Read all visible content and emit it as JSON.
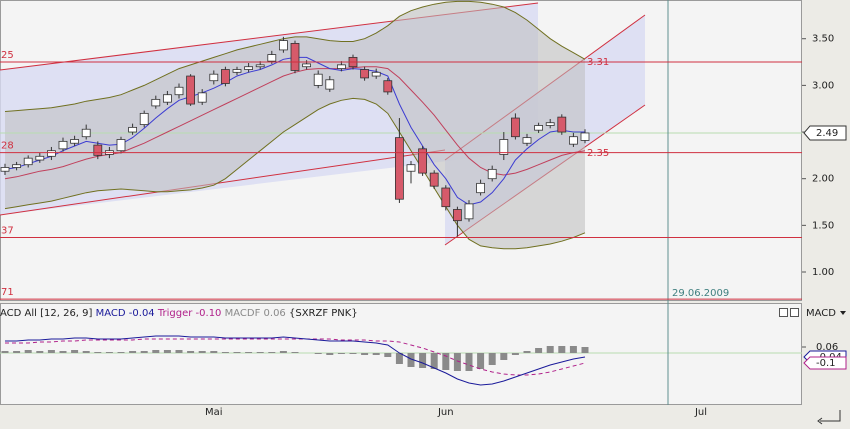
{
  "chart_data": [
    {
      "type": "candlestick",
      "categories": [
        null,
        null,
        null,
        null,
        null,
        null,
        null,
        null,
        null,
        null,
        null,
        null,
        null,
        null,
        null,
        null,
        null,
        null,
        "Mai",
        null,
        null,
        null,
        null,
        null,
        null,
        null,
        null,
        null,
        null,
        null,
        null,
        null,
        null,
        null,
        null,
        null,
        null,
        null,
        "Jun",
        null,
        null,
        null,
        null,
        null,
        null,
        null,
        null,
        null,
        null,
        null,
        null,
        null,
        null,
        null,
        null,
        null,
        null,
        null,
        null,
        null,
        "Jul"
      ],
      "open": [
        2.08,
        2.12,
        2.15,
        2.2,
        2.24,
        2.32,
        2.38,
        2.45,
        2.36,
        2.26,
        2.3,
        2.5,
        2.58,
        2.78,
        2.82,
        2.9,
        3.1,
        2.82,
        3.05,
        3.17,
        3.14,
        3.17,
        3.2,
        3.26,
        3.38,
        3.45,
        3.2,
        3.0,
        2.96,
        3.18,
        3.3,
        3.17,
        3.1,
        3.05,
        2.44,
        2.08,
        2.32,
        2.06,
        1.9,
        1.67,
        1.57,
        1.85,
        2.0,
        2.26,
        2.65,
        2.38,
        2.52,
        2.57,
        2.66,
        2.37,
        2.41,
        null,
        null,
        null,
        null,
        null,
        null,
        null,
        null,
        null,
        null
      ],
      "high": [
        2.16,
        2.18,
        2.25,
        2.28,
        2.34,
        2.44,
        2.46,
        2.58,
        2.4,
        2.34,
        2.45,
        2.59,
        2.73,
        2.89,
        2.94,
        3.02,
        3.12,
        2.96,
        3.16,
        3.2,
        3.2,
        3.24,
        3.26,
        3.37,
        3.52,
        3.48,
        3.27,
        3.16,
        3.1,
        3.26,
        3.33,
        3.2,
        3.18,
        3.08,
        2.65,
        2.19,
        2.35,
        2.09,
        1.93,
        1.7,
        1.77,
        1.99,
        2.14,
        2.5,
        2.7,
        2.48,
        2.6,
        2.64,
        2.69,
        2.49,
        2.53,
        null,
        null,
        null,
        null,
        null,
        null,
        null,
        null,
        null,
        null
      ],
      "low": [
        2.04,
        2.09,
        2.12,
        2.17,
        2.2,
        2.29,
        2.35,
        2.42,
        2.21,
        2.22,
        2.27,
        2.47,
        2.55,
        2.75,
        2.79,
        2.86,
        2.78,
        2.79,
        3.01,
        2.99,
        3.11,
        3.14,
        3.17,
        3.23,
        3.35,
        3.13,
        3.17,
        2.97,
        2.93,
        3.15,
        3.17,
        3.05,
        3.07,
        2.9,
        1.74,
        1.95,
        2.03,
        1.89,
        1.66,
        1.38,
        1.54,
        1.82,
        1.97,
        2.2,
        2.42,
        2.35,
        2.49,
        2.54,
        2.47,
        2.34,
        2.38,
        null,
        null,
        null,
        null,
        null,
        null,
        null,
        null,
        null,
        null
      ],
      "close": [
        2.12,
        2.15,
        2.22,
        2.24,
        2.3,
        2.4,
        2.42,
        2.53,
        2.25,
        2.3,
        2.42,
        2.55,
        2.7,
        2.85,
        2.9,
        2.98,
        2.8,
        2.92,
        3.12,
        3.02,
        3.17,
        3.2,
        3.22,
        3.33,
        3.48,
        3.16,
        3.23,
        3.12,
        3.06,
        3.22,
        3.2,
        3.08,
        3.14,
        2.93,
        1.78,
        2.15,
        2.06,
        1.92,
        1.7,
        1.55,
        1.73,
        1.95,
        2.1,
        2.42,
        2.45,
        2.44,
        2.57,
        2.6,
        2.5,
        2.45,
        2.49,
        null,
        null,
        null,
        null,
        null,
        null,
        null,
        null,
        null,
        null
      ],
      "upper_band": [
        2.72,
        2.73,
        2.74,
        2.75,
        2.76,
        2.78,
        2.8,
        2.83,
        2.85,
        2.87,
        2.9,
        2.95,
        3.0,
        3.06,
        3.12,
        3.18,
        3.22,
        3.26,
        3.3,
        3.34,
        3.38,
        3.41,
        3.44,
        3.47,
        3.5,
        3.52,
        3.52,
        3.5,
        3.48,
        3.47,
        3.47,
        3.5,
        3.56,
        3.64,
        3.74,
        3.8,
        3.84,
        3.87,
        3.89,
        3.9,
        3.9,
        3.89,
        3.87,
        3.84,
        3.78,
        3.7,
        3.6,
        3.5,
        3.42,
        3.35,
        3.28,
        null,
        null,
        null,
        null,
        null,
        null,
        null,
        null,
        null,
        null
      ],
      "lower_band": [
        1.68,
        1.7,
        1.72,
        1.74,
        1.76,
        1.79,
        1.82,
        1.85,
        1.87,
        1.88,
        1.89,
        1.88,
        1.87,
        1.86,
        1.86,
        1.87,
        1.88,
        1.9,
        1.93,
        2.0,
        2.1,
        2.2,
        2.3,
        2.4,
        2.5,
        2.58,
        2.66,
        2.74,
        2.8,
        2.84,
        2.86,
        2.85,
        2.8,
        2.7,
        2.5,
        2.3,
        2.1,
        1.9,
        1.7,
        1.5,
        1.35,
        1.28,
        1.26,
        1.25,
        1.25,
        1.26,
        1.28,
        1.3,
        1.33,
        1.37,
        1.42,
        null,
        null,
        null,
        null,
        null,
        null,
        null,
        null,
        null,
        null
      ],
      "ma_fast": [
        2.1,
        2.12,
        2.16,
        2.2,
        2.24,
        2.3,
        2.35,
        2.4,
        2.38,
        2.36,
        2.37,
        2.44,
        2.54,
        2.65,
        2.75,
        2.84,
        2.88,
        2.92,
        2.97,
        3.03,
        3.1,
        3.14,
        3.17,
        3.22,
        3.28,
        3.3,
        3.3,
        3.24,
        3.18,
        3.16,
        3.18,
        3.17,
        3.15,
        3.1,
        2.8,
        2.55,
        2.35,
        2.15,
        2.0,
        1.8,
        1.72,
        1.75,
        1.85,
        2.0,
        2.2,
        2.32,
        2.42,
        2.5,
        2.52,
        2.5,
        2.5,
        null,
        null,
        null,
        null,
        null,
        null,
        null,
        null,
        null,
        null
      ],
      "ma_slow": [
        2.0,
        2.02,
        2.05,
        2.08,
        2.1,
        2.13,
        2.17,
        2.21,
        2.24,
        2.26,
        2.28,
        2.33,
        2.38,
        2.44,
        2.5,
        2.56,
        2.62,
        2.68,
        2.74,
        2.8,
        2.86,
        2.92,
        2.98,
        3.04,
        3.1,
        3.14,
        3.17,
        3.18,
        3.18,
        3.18,
        3.19,
        3.2,
        3.2,
        3.18,
        3.08,
        2.95,
        2.82,
        2.68,
        2.52,
        2.36,
        2.22,
        2.12,
        2.06,
        2.04,
        2.06,
        2.1,
        2.15,
        2.2,
        2.25,
        2.28,
        2.3,
        null,
        null,
        null,
        null,
        null,
        null,
        null,
        null,
        null,
        null
      ],
      "colors": {
        "up": "#ffffff",
        "down": "#d65a6a",
        "outline": "#333333",
        "band": "#707020",
        "band_fill": "#bdbdbd",
        "ma_fast": "#3c3cd2",
        "ma_slow": "#c0405c",
        "level": "#d03040",
        "last_line": "#b8ddb0"
      },
      "ylim": [
        0.7,
        3.915
      ],
      "yticks": [
        {
          "value": 3.5,
          "label": "3.50"
        },
        {
          "value": 3,
          "label": "3.00"
        },
        {
          "value": 2.5,
          "label": "2.50"
        },
        {
          "value": 2,
          "label": "2.00"
        },
        {
          "value": 1.5,
          "label": "1.50"
        },
        {
          "value": 1,
          "label": "1.00"
        }
      ],
      "levels": [
        {
          "value": 3.25,
          "label": "25"
        },
        {
          "value": 2.28,
          "label": "28"
        },
        {
          "value": 1.37,
          "label": "37"
        },
        {
          "value": 0.71,
          "label": "71"
        }
      ],
      "annotations": [
        "3.31",
        "2.35"
      ],
      "cursor_date": "29.06.2009"
    },
    {
      "type": "macd",
      "title": "ACD All [12, 26, 9]",
      "symbol": "{SXRZF PNK}",
      "indicator_menu": "MACD",
      "series": [
        {
          "name": "MACD",
          "color": "#1a1a9a",
          "values": [
            0.12,
            0.12,
            0.13,
            0.13,
            0.14,
            0.14,
            0.15,
            0.15,
            0.14,
            0.14,
            0.14,
            0.15,
            0.16,
            0.17,
            0.17,
            0.17,
            0.16,
            0.16,
            0.16,
            0.15,
            0.15,
            0.15,
            0.15,
            0.15,
            0.16,
            0.15,
            0.14,
            0.13,
            0.12,
            0.12,
            0.12,
            0.11,
            0.1,
            0.08,
            0.0,
            -0.06,
            -0.1,
            -0.15,
            -0.2,
            -0.26,
            -0.3,
            -0.32,
            -0.31,
            -0.28,
            -0.24,
            -0.2,
            -0.16,
            -0.12,
            -0.09,
            -0.06,
            -0.04,
            null,
            null,
            null,
            null,
            null,
            null,
            null,
            null,
            null,
            null
          ]
        },
        {
          "name": "Trigger",
          "color": "#b0208a",
          "values": [
            0.1,
            0.1,
            0.1,
            0.11,
            0.11,
            0.12,
            0.12,
            0.13,
            0.13,
            0.13,
            0.13,
            0.13,
            0.14,
            0.14,
            0.14,
            0.14,
            0.14,
            0.14,
            0.14,
            0.14,
            0.14,
            0.14,
            0.14,
            0.14,
            0.14,
            0.14,
            0.14,
            0.14,
            0.14,
            0.13,
            0.13,
            0.13,
            0.12,
            0.12,
            0.11,
            0.08,
            0.05,
            0.01,
            -0.03,
            -0.08,
            -0.12,
            -0.16,
            -0.19,
            -0.21,
            -0.22,
            -0.22,
            -0.21,
            -0.19,
            -0.16,
            -0.13,
            -0.1,
            null,
            null,
            null,
            null,
            null,
            null,
            null,
            null,
            null,
            null
          ],
          "value_labels": [
            null,
            null,
            null,
            null,
            null,
            null,
            null,
            null,
            null,
            null,
            null,
            null,
            null,
            null,
            null,
            null,
            null,
            null,
            null,
            null,
            null,
            null,
            null,
            null,
            null,
            null,
            null,
            null,
            null,
            null,
            null,
            null,
            null,
            null,
            null,
            null,
            null,
            null,
            null,
            null,
            null,
            null,
            null,
            null,
            null,
            null,
            null,
            null,
            null,
            null,
            "-0.10",
            null,
            null,
            null,
            null,
            null,
            null,
            null,
            null,
            null,
            null
          ]
        },
        {
          "name": "MACDF",
          "color": "#8a8a8a",
          "values": [
            0.02,
            0.02,
            0.03,
            0.02,
            0.03,
            0.02,
            0.03,
            0.02,
            0.01,
            0.01,
            0.01,
            0.02,
            0.02,
            0.03,
            0.03,
            0.03,
            0.02,
            0.02,
            0.02,
            0.01,
            0.01,
            0.01,
            0.01,
            0.01,
            0.02,
            0.01,
            0,
            -0.01,
            -0.02,
            -0.01,
            -0.01,
            -0.02,
            -0.02,
            -0.04,
            -0.11,
            -0.14,
            -0.15,
            -0.16,
            -0.17,
            -0.18,
            -0.18,
            -0.16,
            -0.12,
            -0.07,
            -0.02,
            0.02,
            0.05,
            0.07,
            0.07,
            0.07,
            0.06,
            null,
            null,
            null,
            null,
            null,
            null,
            null,
            null,
            null,
            null
          ]
        }
      ],
      "ylim": [
        -0.52,
        0.48
      ],
      "yticks": [
        0.06,
        -0.04,
        -0.1
      ]
    }
  ]
}
